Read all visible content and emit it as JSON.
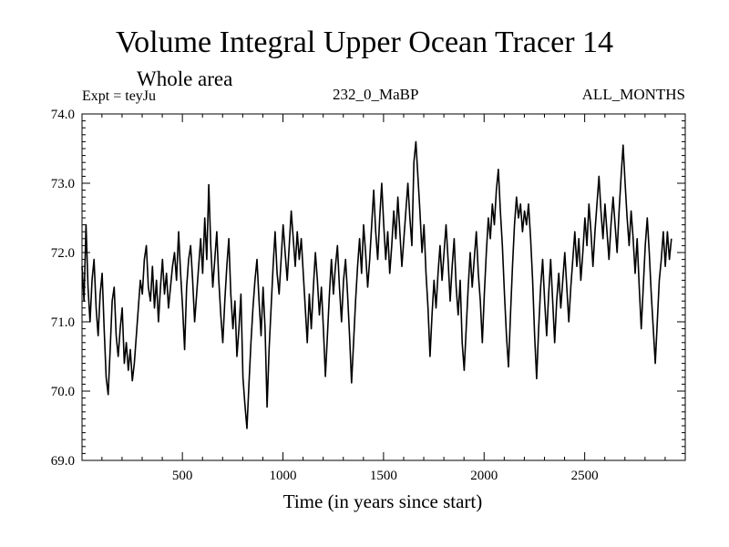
{
  "header": {
    "title": "Volume Integral Upper Ocean Tracer 14",
    "subtitle": "Whole area",
    "experiment": "Expt = teyJu",
    "run_id": "232_0_MaBP",
    "period": "ALL_MONTHS"
  },
  "chart_data": {
    "type": "line",
    "title": "Volume Integral Upper Ocean Tracer 14",
    "xlabel": "Time (in years since start)",
    "ylabel": "",
    "xlim": [
      1,
      3000
    ],
    "ylim": [
      69.0,
      74.0
    ],
    "x_ticks": [
      500,
      1000,
      1500,
      2000,
      2500
    ],
    "x_tick_labels": [
      "500",
      "1000",
      "1500",
      "2000",
      "2500"
    ],
    "y_ticks": [
      69.0,
      70.0,
      71.0,
      72.0,
      73.0,
      74.0
    ],
    "y_tick_labels": [
      "69.0",
      "70.0",
      "71.0",
      "72.0",
      "73.0",
      "74.0"
    ],
    "grid": false,
    "line_color": "#000000",
    "series": [
      {
        "name": "Tracer 14",
        "x_step": 10,
        "x_start": 1,
        "values": [
          71.8,
          71.3,
          72.4,
          71.5,
          71.0,
          71.6,
          71.9,
          71.2,
          70.8,
          71.4,
          71.7,
          70.9,
          70.2,
          69.95,
          70.6,
          71.3,
          71.5,
          70.8,
          70.5,
          70.9,
          71.2,
          70.4,
          70.7,
          70.3,
          70.6,
          70.15,
          70.4,
          70.8,
          71.2,
          71.6,
          71.4,
          71.9,
          72.1,
          71.5,
          71.3,
          71.8,
          71.2,
          71.6,
          71.0,
          71.5,
          71.9,
          71.4,
          71.7,
          71.2,
          71.5,
          71.8,
          72.0,
          71.6,
          72.3,
          71.7,
          71.2,
          70.6,
          71.5,
          71.9,
          72.1,
          71.6,
          71.0,
          71.4,
          71.8,
          72.2,
          71.7,
          72.5,
          71.9,
          72.98,
          72.1,
          71.5,
          71.9,
          72.3,
          71.6,
          71.1,
          70.7,
          71.3,
          71.8,
          72.2,
          71.4,
          70.9,
          71.3,
          70.5,
          70.9,
          71.4,
          70.2,
          69.8,
          69.46,
          70.1,
          70.7,
          71.2,
          71.6,
          71.9,
          71.3,
          70.8,
          71.5,
          70.9,
          69.77,
          70.6,
          71.2,
          71.8,
          72.3,
          71.7,
          71.4,
          71.9,
          72.4,
          72.0,
          71.6,
          72.1,
          72.6,
          72.2,
          71.8,
          72.3,
          71.9,
          72.2,
          71.7,
          71.2,
          70.7,
          71.4,
          70.9,
          71.5,
          72.0,
          71.6,
          71.1,
          71.5,
          70.9,
          70.21,
          70.8,
          71.4,
          71.9,
          71.4,
          71.8,
          72.1,
          71.5,
          71.0,
          71.6,
          71.9,
          71.4,
          70.8,
          70.12,
          70.7,
          71.3,
          71.8,
          72.2,
          71.7,
          72.4,
          72.0,
          71.5,
          71.9,
          72.4,
          72.9,
          72.3,
          71.9,
          72.5,
          73.0,
          72.4,
          71.9,
          72.3,
          71.7,
          72.1,
          72.6,
          72.2,
          72.8,
          72.3,
          71.8,
          72.2,
          72.6,
          73.0,
          72.5,
          72.1,
          73.3,
          73.6,
          73.1,
          72.6,
          72.0,
          72.4,
          71.7,
          71.2,
          70.5,
          71.1,
          71.6,
          71.2,
          71.7,
          72.1,
          71.6,
          72.0,
          72.4,
          71.9,
          71.3,
          71.8,
          72.2,
          71.5,
          71.1,
          71.6,
          70.7,
          70.3,
          70.9,
          71.5,
          72.0,
          71.5,
          71.9,
          72.3,
          71.7,
          71.3,
          70.7,
          71.4,
          72.0,
          72.5,
          72.2,
          72.7,
          72.4,
          72.9,
          73.2,
          72.6,
          72.1,
          71.4,
          70.8,
          70.35,
          71.1,
          71.8,
          72.4,
          72.8,
          72.5,
          72.7,
          72.3,
          72.6,
          72.4,
          72.7,
          72.2,
          71.6,
          70.8,
          70.18,
          70.9,
          71.5,
          71.9,
          71.3,
          70.8,
          71.4,
          71.9,
          71.3,
          70.7,
          71.3,
          71.7,
          71.2,
          71.6,
          72.0,
          71.5,
          71.0,
          71.5,
          71.9,
          72.3,
          71.8,
          72.2,
          71.6,
          72.0,
          72.5,
          72.1,
          72.7,
          72.3,
          71.8,
          72.3,
          72.7,
          73.1,
          72.6,
          72.2,
          72.7,
          72.3,
          71.9,
          72.4,
          72.8,
          72.4,
          72.0,
          72.6,
          73.1,
          73.55,
          73.0,
          72.5,
          72.1,
          72.6,
          72.2,
          71.7,
          72.2,
          71.5,
          70.9,
          71.5,
          72.1,
          72.5,
          72.0,
          71.4,
          70.9,
          70.4,
          71.0,
          71.6,
          71.9,
          72.3,
          71.8,
          72.3,
          71.9,
          72.2
        ]
      }
    ]
  }
}
